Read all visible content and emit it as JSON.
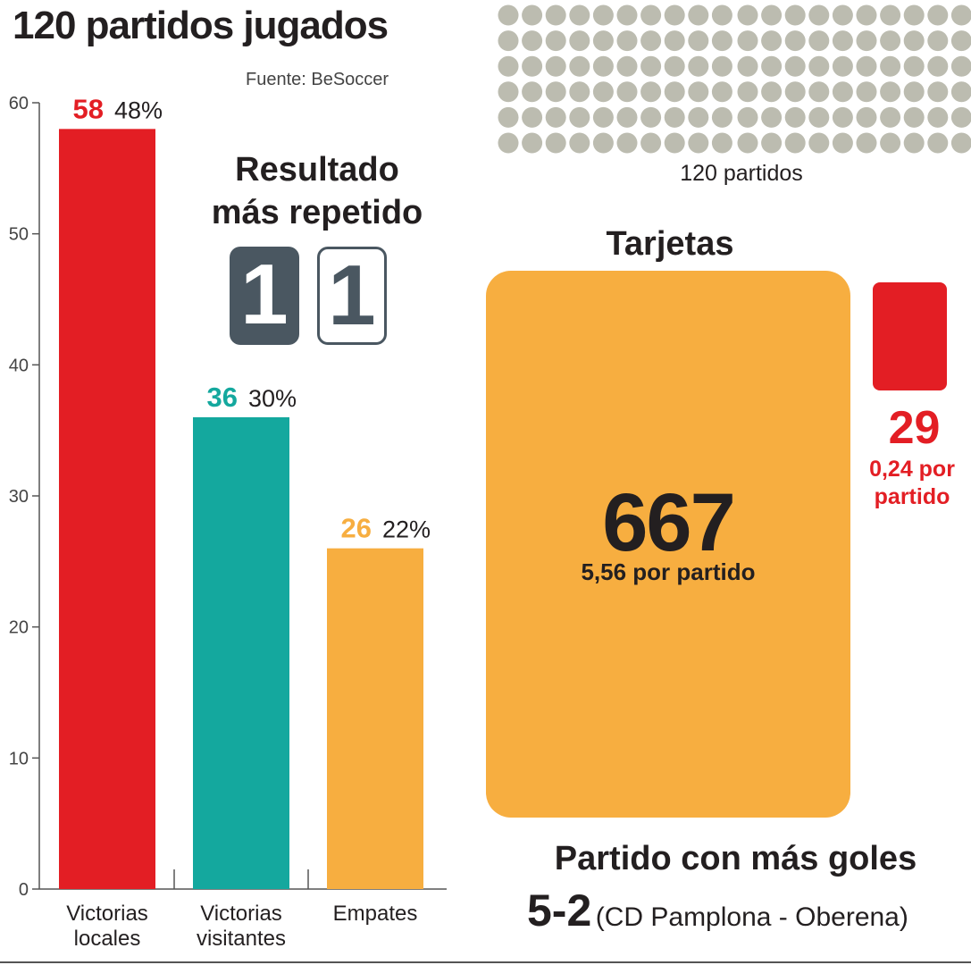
{
  "title": "120 partidos jugados",
  "source": "Fuente: BeSoccer",
  "chart_data": {
    "type": "bar",
    "categories": [
      "Victorias locales",
      "Victorias visitantes",
      "Empates"
    ],
    "category_lines": [
      [
        "Victorias",
        "locales"
      ],
      [
        "Victorias",
        "visitantes"
      ],
      [
        "Empates"
      ]
    ],
    "values": [
      58,
      36,
      26
    ],
    "percent_labels": [
      "48%",
      "30%",
      "22%"
    ],
    "colors": [
      "#e31e24",
      "#14a89e",
      "#f7ae40"
    ],
    "ylim": [
      0,
      60
    ],
    "yticks": [
      0,
      10,
      20,
      30,
      40,
      50,
      60
    ],
    "grid": false,
    "legend": "none"
  },
  "most_repeated_result": {
    "title_line1": "Resultado",
    "title_line2": "más repetido",
    "home": "1",
    "away": "1",
    "home_color": "#4a5761"
  },
  "matches_grid": {
    "total": 120,
    "label": "120 partidos",
    "dot_color": "#bcbcb0"
  },
  "cards": {
    "title": "Tarjetas",
    "yellow_total": "667",
    "yellow_per_match": "5,56 por partido",
    "yellow_color": "#f7ae40",
    "red_total": "29",
    "red_per_match_line1": "0,24 por",
    "red_per_match_line2": "partido",
    "red_color": "#e31e24"
  },
  "most_goals_match": {
    "title": "Partido con más goles",
    "score": "5-2",
    "teams": "(CD Pamplona - Oberena)"
  }
}
